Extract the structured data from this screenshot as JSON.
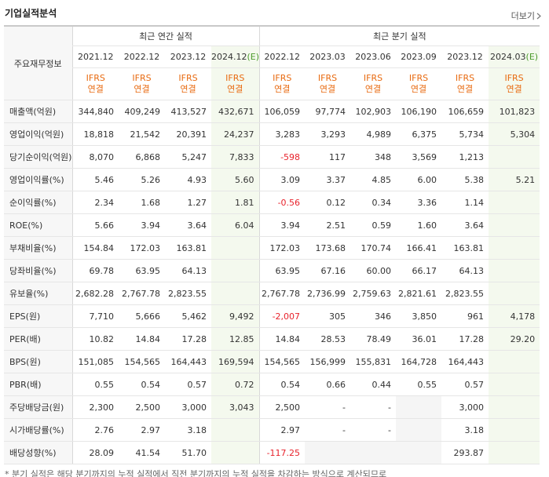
{
  "header": {
    "title": "기업실적분석",
    "more": "더보기"
  },
  "table": {
    "corner": "주요재무정보",
    "groups": [
      {
        "label": "최근 연간 실적",
        "span": 4
      },
      {
        "label": "최근 분기 실적",
        "span": 6
      }
    ],
    "columns": [
      {
        "period": "2021.12",
        "basis": "IFRS",
        "scope": "연결"
      },
      {
        "period": "2022.12",
        "basis": "IFRS",
        "scope": "연결"
      },
      {
        "period": "2023.12",
        "basis": "IFRS",
        "scope": "연결"
      },
      {
        "period": "2024.12",
        "estimate": "(E)",
        "basis": "IFRS",
        "scope": "연결"
      },
      {
        "period": "2022.12",
        "basis": "IFRS",
        "scope": "연결"
      },
      {
        "period": "2023.03",
        "basis": "IFRS",
        "scope": "연결"
      },
      {
        "period": "2023.06",
        "basis": "IFRS",
        "scope": "연결"
      },
      {
        "period": "2023.09",
        "basis": "IFRS",
        "scope": "연결"
      },
      {
        "period": "2023.12",
        "basis": "IFRS",
        "scope": "연결"
      },
      {
        "period": "2024.03",
        "estimate": "(E)",
        "basis": "IFRS",
        "scope": "연결"
      }
    ],
    "rows": [
      {
        "label": "매출액(억원)",
        "values": [
          "344,840",
          "409,249",
          "413,527",
          "432,671",
          "106,059",
          "97,774",
          "102,903",
          "106,190",
          "106,659",
          "101,823"
        ]
      },
      {
        "label": "영업이익(억원)",
        "values": [
          "18,818",
          "21,542",
          "20,391",
          "24,237",
          "3,283",
          "3,293",
          "4,989",
          "6,375",
          "5,734",
          "5,304"
        ]
      },
      {
        "label": "당기순이익(억원)",
        "values": [
          "8,070",
          "6,868",
          "5,247",
          "7,833",
          "-598",
          "117",
          "348",
          "3,569",
          "1,213",
          null
        ]
      },
      {
        "label": "영업이익률(%)",
        "values": [
          "5.46",
          "5.26",
          "4.93",
          "5.60",
          "3.09",
          "3.37",
          "4.85",
          "6.00",
          "5.38",
          "5.21"
        ]
      },
      {
        "label": "순이익률(%)",
        "values": [
          "2.34",
          "1.68",
          "1.27",
          "1.81",
          "-0.56",
          "0.12",
          "0.34",
          "3.36",
          "1.14",
          null
        ]
      },
      {
        "label": "ROE(%)",
        "values": [
          "5.66",
          "3.94",
          "3.64",
          "6.04",
          "3.94",
          "2.51",
          "0.59",
          "1.60",
          "3.64",
          null
        ]
      },
      {
        "label": "부채비율(%)",
        "values": [
          "154.84",
          "172.03",
          "163.81",
          null,
          "172.03",
          "173.68",
          "170.74",
          "166.41",
          "163.81",
          null
        ]
      },
      {
        "label": "당좌비율(%)",
        "values": [
          "69.78",
          "63.95",
          "64.13",
          null,
          "63.95",
          "67.16",
          "60.00",
          "66.17",
          "64.13",
          null
        ]
      },
      {
        "label": "유보율(%)",
        "values": [
          "2,682.28",
          "2,767.78",
          "2,823.55",
          null,
          "2,767.78",
          "2,736.99",
          "2,759.63",
          "2,821.61",
          "2,823.55",
          null
        ]
      },
      {
        "label": "EPS(원)",
        "values": [
          "7,710",
          "5,666",
          "5,462",
          "9,492",
          "-2,007",
          "305",
          "346",
          "3,850",
          "961",
          "4,178"
        ]
      },
      {
        "label": "PER(배)",
        "values": [
          "10.82",
          "14.84",
          "17.28",
          "12.85",
          "14.84",
          "28.53",
          "78.49",
          "36.01",
          "17.28",
          "29.20"
        ]
      },
      {
        "label": "BPS(원)",
        "values": [
          "151,085",
          "154,565",
          "164,443",
          "169,594",
          "154,565",
          "156,999",
          "155,831",
          "164,728",
          "164,443",
          null
        ]
      },
      {
        "label": "PBR(배)",
        "values": [
          "0.55",
          "0.54",
          "0.57",
          "0.72",
          "0.54",
          "0.66",
          "0.44",
          "0.55",
          "0.57",
          null
        ]
      },
      {
        "label": "주당배당금(원)",
        "values": [
          "2,300",
          "2,500",
          "3,000",
          "3,043",
          "2,500",
          "-",
          "-",
          null,
          "3,000",
          null
        ]
      },
      {
        "label": "시가배당률(%)",
        "values": [
          "2.76",
          "2.97",
          "3.18",
          null,
          "2.97",
          "-",
          "-",
          null,
          "3.18",
          null
        ]
      },
      {
        "label": "배당성향(%)",
        "values": [
          "28.09",
          "41.54",
          "51.70",
          null,
          "-117.25",
          null,
          null,
          null,
          "293.87",
          null
        ]
      }
    ]
  },
  "footnote": "* 분기 실적은 해당 분기까지의 누적 실적에서 직전 분기까지의 누적 실적을 차감하는 방식으로 계산되므로"
}
